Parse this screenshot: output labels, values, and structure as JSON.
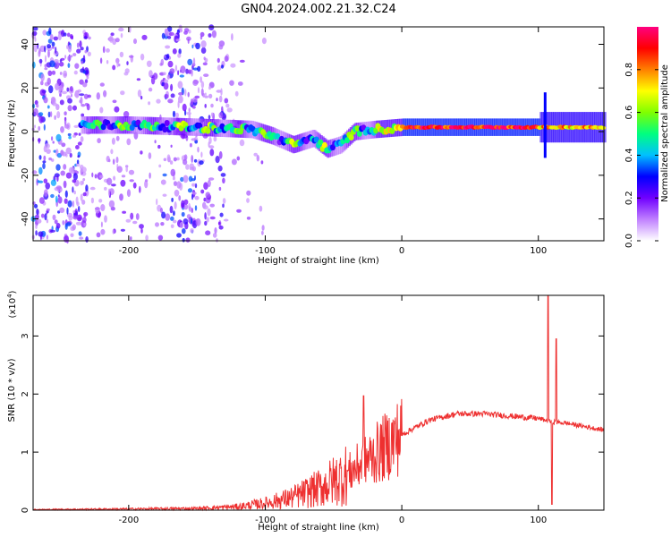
{
  "title": "GN04.2024.002.21.32.C24",
  "chart_data": [
    {
      "type": "heatmap",
      "xlabel": "Height of straight line (km)",
      "ylabel": "Frequency (Hz)",
      "xlim": [
        -270,
        148
      ],
      "ylim": [
        -50,
        48
      ],
      "xticks": [
        -200,
        -100,
        0,
        100
      ],
      "yticks": [
        -40,
        -20,
        0,
        20,
        40
      ],
      "colorbar": {
        "label": "Normalized spectral amplitude",
        "ticks": [
          0.0,
          0.2,
          0.4,
          0.6,
          0.8
        ],
        "range": [
          0,
          1
        ],
        "colormap": [
          "#ffffff",
          "#c080ff",
          "#7000ff",
          "#0000ff",
          "#00c0ff",
          "#00ff80",
          "#80ff00",
          "#ffff00",
          "#ff8000",
          "#ff0000",
          "#ff0080"
        ]
      },
      "band_center": [
        [
          -235,
          3
        ],
        [
          -200,
          3
        ],
        [
          -150,
          2
        ],
        [
          -110,
          1
        ],
        [
          -95,
          -2
        ],
        [
          -80,
          -6
        ],
        [
          -65,
          -3
        ],
        [
          -55,
          -8
        ],
        [
          -45,
          -6
        ],
        [
          -35,
          0
        ],
        [
          -20,
          1
        ],
        [
          0,
          2
        ],
        [
          40,
          2
        ],
        [
          80,
          2
        ],
        [
          100,
          2
        ],
        [
          148,
          2
        ]
      ]
    },
    {
      "type": "line",
      "xlabel": "Height of straight line (km)",
      "ylabel": "SNR (10 * v/v)",
      "yscale_label": "(x10",
      "yscale_exp": "4",
      "yscale_close": ")",
      "xlim": [
        -270,
        148
      ],
      "ylim": [
        0,
        3.7
      ],
      "xticks": [
        -200,
        -100,
        0,
        100
      ],
      "yticks": [
        0,
        1,
        2,
        3
      ],
      "color": "#ee3030",
      "envelope": [
        [
          -270,
          0.01
        ],
        [
          -200,
          0.02
        ],
        [
          -150,
          0.03
        ],
        [
          -120,
          0.06
        ],
        [
          -100,
          0.12
        ],
        [
          -80,
          0.22
        ],
        [
          -60,
          0.38
        ],
        [
          -40,
          0.62
        ],
        [
          -20,
          0.95
        ],
        [
          0,
          1.3
        ],
        [
          20,
          1.55
        ],
        [
          40,
          1.66
        ],
        [
          60,
          1.66
        ],
        [
          80,
          1.62
        ],
        [
          100,
          1.58
        ],
        [
          110,
          1.52
        ],
        [
          120,
          1.5
        ],
        [
          148,
          1.38
        ]
      ],
      "peaks": [
        {
          "x": -28,
          "y": 1.97
        },
        {
          "x": -65,
          "y": 0.55
        },
        {
          "x": 107,
          "y": 3.7
        },
        {
          "x": 110,
          "y": 0.1
        },
        {
          "x": 113,
          "y": 2.95
        }
      ]
    }
  ]
}
